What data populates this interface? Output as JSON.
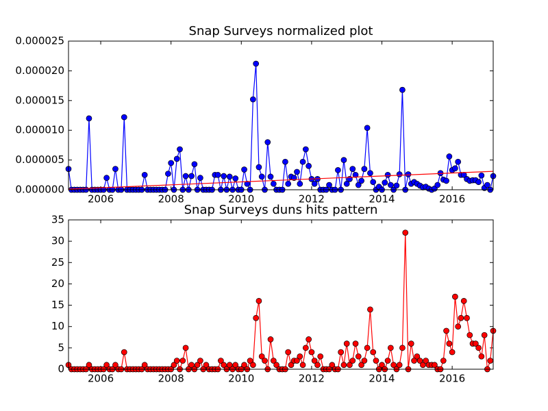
{
  "chart_data": [
    {
      "type": "line",
      "title": "Snap Surveys normalized plot",
      "xlim": [
        2005.083,
        2017.167
      ],
      "ylim": [
        0,
        2.5e-05
      ],
      "xticks": [
        2006,
        2008,
        2010,
        2012,
        2014,
        2016
      ],
      "yticks": [
        {
          "value": 0,
          "label": "0.000000"
        },
        {
          "value": 5e-06,
          "label": "0.000005"
        },
        {
          "value": 1e-05,
          "label": "0.000010"
        },
        {
          "value": 1.5e-05,
          "label": "0.000015"
        },
        {
          "value": 2e-05,
          "label": "0.000020"
        },
        {
          "value": 2.5e-05,
          "label": "0.000025"
        }
      ],
      "x": [
        2005.083,
        2005.167,
        2005.25,
        2005.333,
        2005.417,
        2005.5,
        2005.583,
        2005.667,
        2005.75,
        2005.833,
        2005.917,
        2006.0,
        2006.083,
        2006.167,
        2006.25,
        2006.333,
        2006.417,
        2006.5,
        2006.583,
        2006.667,
        2006.75,
        2006.833,
        2006.917,
        2007.0,
        2007.083,
        2007.167,
        2007.25,
        2007.333,
        2007.417,
        2007.5,
        2007.583,
        2007.667,
        2007.75,
        2007.833,
        2007.917,
        2008.0,
        2008.083,
        2008.167,
        2008.25,
        2008.333,
        2008.417,
        2008.5,
        2008.583,
        2008.667,
        2008.75,
        2008.833,
        2008.917,
        2009.0,
        2009.083,
        2009.167,
        2009.25,
        2009.333,
        2009.417,
        2009.5,
        2009.583,
        2009.667,
        2009.75,
        2009.833,
        2009.917,
        2010.0,
        2010.083,
        2010.167,
        2010.25,
        2010.333,
        2010.417,
        2010.5,
        2010.583,
        2010.667,
        2010.75,
        2010.833,
        2010.917,
        2011.0,
        2011.083,
        2011.167,
        2011.25,
        2011.333,
        2011.417,
        2011.5,
        2011.583,
        2011.667,
        2011.75,
        2011.833,
        2011.917,
        2012.0,
        2012.083,
        2012.167,
        2012.25,
        2012.333,
        2012.417,
        2012.5,
        2012.583,
        2012.667,
        2012.75,
        2012.833,
        2012.917,
        2013.0,
        2013.083,
        2013.167,
        2013.25,
        2013.333,
        2013.417,
        2013.5,
        2013.583,
        2013.667,
        2013.75,
        2013.833,
        2013.917,
        2014.0,
        2014.083,
        2014.167,
        2014.25,
        2014.333,
        2014.417,
        2014.5,
        2014.583,
        2014.667,
        2014.75,
        2014.833,
        2014.917,
        2015.0,
        2015.083,
        2015.167,
        2015.25,
        2015.333,
        2015.417,
        2015.5,
        2015.583,
        2015.667,
        2015.75,
        2015.833,
        2015.917,
        2016.0,
        2016.083,
        2016.167,
        2016.25,
        2016.333,
        2016.417,
        2016.5,
        2016.583,
        2016.667,
        2016.75,
        2016.833,
        2016.917,
        2017.0,
        2017.083,
        2017.167
      ],
      "series": [
        {
          "color": "#0000ff",
          "values": [
            3.5e-06,
            0,
            0,
            0,
            0,
            0,
            0,
            1.2e-05,
            0,
            0,
            0,
            0,
            0,
            2e-06,
            0,
            0,
            3.5e-06,
            0,
            0,
            1.22e-05,
            0,
            0,
            0,
            0,
            0,
            0,
            2.5e-06,
            0,
            0,
            0,
            0,
            0,
            0,
            0,
            2.7e-06,
            4.5e-06,
            0,
            5.2e-06,
            6.8e-06,
            0,
            2.3e-06,
            0,
            2.3e-06,
            4.3e-06,
            0,
            2e-06,
            0,
            0,
            0,
            0,
            2.5e-06,
            2.5e-06,
            0,
            2.3e-06,
            0,
            2.2e-06,
            0,
            1.9e-06,
            0,
            0,
            3.4e-06,
            1e-06,
            0,
            1.52e-05,
            2.12e-05,
            3.8e-06,
            2.2e-06,
            0,
            8e-06,
            2.2e-06,
            1e-06,
            0,
            0,
            0,
            4.7e-06,
            1e-06,
            2.2e-06,
            2e-06,
            3e-06,
            1e-06,
            4.7e-06,
            6.8e-06,
            4e-06,
            1.8e-06,
            1e-06,
            1.8e-06,
            0,
            0,
            0,
            8e-07,
            0,
            0,
            3.3e-06,
            0,
            5e-06,
            1e-06,
            1.8e-06,
            3.5e-06,
            2.5e-06,
            8e-07,
            1.5e-06,
            3.5e-06,
            1.04e-05,
            2.8e-06,
            1.3e-06,
            0,
            5e-07,
            0,
            1.2e-06,
            2.5e-06,
            8e-07,
            0,
            7e-07,
            2.6e-06,
            1.68e-05,
            0,
            2.6e-06,
            1e-06,
            1.3e-06,
            1e-06,
            7e-07,
            4e-07,
            5e-07,
            2e-07,
            0,
            2e-07,
            8e-07,
            2.8e-06,
            1.7e-06,
            1.5e-06,
            5.6e-06,
            3.3e-06,
            3.6e-06,
            4.7e-06,
            2.5e-06,
            2.5e-06,
            1.8e-06,
            1.5e-06,
            1.6e-06,
            1.6e-06,
            1.3e-06,
            2.4e-06,
            3e-07,
            8e-07,
            0,
            2.3e-06
          ]
        }
      ],
      "trendline": {
        "color": "#ff0000",
        "x": [
          2005.083,
          2017.167
        ],
        "values": [
          1e-07,
          3.1e-06
        ]
      }
    },
    {
      "type": "line",
      "title": "Snap Surveys duns hits pattern",
      "xlim": [
        2005.083,
        2017.167
      ],
      "ylim": [
        0,
        35
      ],
      "xticks": [
        2006,
        2008,
        2010,
        2012,
        2014,
        2016
      ],
      "yticks": [
        0,
        5,
        10,
        15,
        20,
        25,
        30,
        35
      ],
      "x": [
        2005.083,
        2005.167,
        2005.25,
        2005.333,
        2005.417,
        2005.5,
        2005.583,
        2005.667,
        2005.75,
        2005.833,
        2005.917,
        2006.0,
        2006.083,
        2006.167,
        2006.25,
        2006.333,
        2006.417,
        2006.5,
        2006.583,
        2006.667,
        2006.75,
        2006.833,
        2006.917,
        2007.0,
        2007.083,
        2007.167,
        2007.25,
        2007.333,
        2007.417,
        2007.5,
        2007.583,
        2007.667,
        2007.75,
        2007.833,
        2007.917,
        2008.0,
        2008.083,
        2008.167,
        2008.25,
        2008.333,
        2008.417,
        2008.5,
        2008.583,
        2008.667,
        2008.75,
        2008.833,
        2008.917,
        2009.0,
        2009.083,
        2009.167,
        2009.25,
        2009.333,
        2009.417,
        2009.5,
        2009.583,
        2009.667,
        2009.75,
        2009.833,
        2009.917,
        2010.0,
        2010.083,
        2010.167,
        2010.25,
        2010.333,
        2010.417,
        2010.5,
        2010.583,
        2010.667,
        2010.75,
        2010.833,
        2010.917,
        2011.0,
        2011.083,
        2011.167,
        2011.25,
        2011.333,
        2011.417,
        2011.5,
        2011.583,
        2011.667,
        2011.75,
        2011.833,
        2011.917,
        2012.0,
        2012.083,
        2012.167,
        2012.25,
        2012.333,
        2012.417,
        2012.5,
        2012.583,
        2012.667,
        2012.75,
        2012.833,
        2012.917,
        2013.0,
        2013.083,
        2013.167,
        2013.25,
        2013.333,
        2013.417,
        2013.5,
        2013.583,
        2013.667,
        2013.75,
        2013.833,
        2013.917,
        2014.0,
        2014.083,
        2014.167,
        2014.25,
        2014.333,
        2014.417,
        2014.5,
        2014.583,
        2014.667,
        2014.75,
        2014.833,
        2014.917,
        2015.0,
        2015.083,
        2015.167,
        2015.25,
        2015.333,
        2015.417,
        2015.5,
        2015.583,
        2015.667,
        2015.75,
        2015.833,
        2015.917,
        2016.0,
        2016.083,
        2016.167,
        2016.25,
        2016.333,
        2016.417,
        2016.5,
        2016.583,
        2016.667,
        2016.75,
        2016.833,
        2016.917,
        2017.0,
        2017.083,
        2017.167
      ],
      "series": [
        {
          "color": "#ff0000",
          "values": [
            1,
            0,
            0,
            0,
            0,
            0,
            0,
            1,
            0,
            0,
            0,
            0,
            0,
            1,
            0,
            0,
            1,
            0,
            0,
            4,
            0,
            0,
            0,
            0,
            0,
            0,
            1,
            0,
            0,
            0,
            0,
            0,
            0,
            0,
            0,
            0,
            1,
            2,
            0,
            2,
            5,
            0,
            1,
            0,
            1,
            2,
            0,
            1,
            0,
            0,
            0,
            0,
            2,
            1,
            0,
            1,
            0,
            1,
            0,
            0,
            1,
            0,
            2,
            1,
            12,
            16,
            3,
            2,
            0,
            7,
            2,
            1,
            0,
            0,
            0,
            4,
            1,
            2,
            2,
            3,
            1,
            5,
            7,
            4,
            2,
            1,
            3,
            0,
            0,
            0,
            1,
            0,
            0,
            4,
            1,
            6,
            1,
            2,
            6,
            3,
            1,
            2,
            5,
            14,
            4,
            2,
            0,
            1,
            0,
            2,
            5,
            1,
            0,
            1,
            5,
            32,
            0,
            6,
            2,
            3,
            2,
            1,
            2,
            1,
            1,
            1,
            0,
            0,
            2,
            9,
            6,
            4,
            17,
            10,
            12,
            16,
            12,
            8,
            6,
            6,
            5,
            3,
            8,
            0,
            2,
            9
          ]
        }
      ]
    }
  ]
}
